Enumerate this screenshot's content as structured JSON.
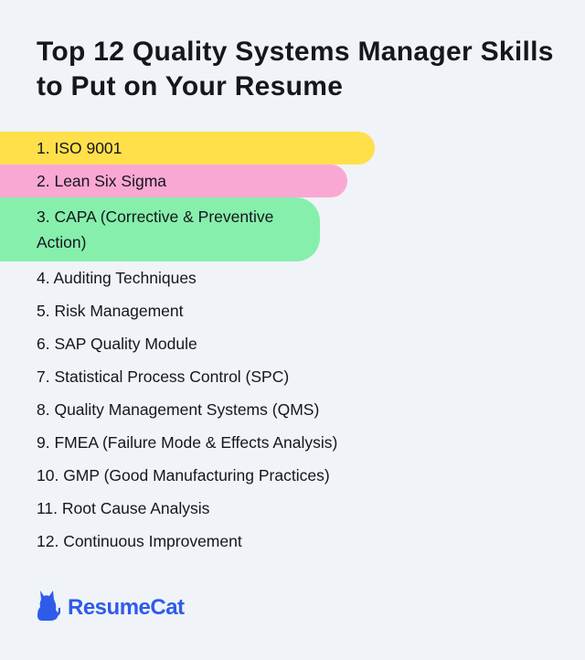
{
  "title": "Top 12 Quality Systems Manager Skills to Put on Your Resume",
  "skills": [
    {
      "label": "1. ISO 9001",
      "color": "#ffe04b"
    },
    {
      "label": "2. Lean Six Sigma",
      "color": "#f9a8d4"
    },
    {
      "label": "3. CAPA (Corrective & Preventive Action)",
      "color": "#86efac"
    },
    {
      "label": "4. Auditing Techniques"
    },
    {
      "label": "5. Risk Management"
    },
    {
      "label": "6. SAP Quality Module"
    },
    {
      "label": "7. Statistical Process Control (SPC)"
    },
    {
      "label": "8. Quality Management Systems (QMS)"
    },
    {
      "label": "9. FMEA (Failure Mode & Effects Analysis)"
    },
    {
      "label": "10. GMP (Good Manufacturing Practices)"
    },
    {
      "label": "11. Root Cause Analysis"
    },
    {
      "label": "12. Continuous Improvement"
    }
  ],
  "logo": {
    "icon": "cat-icon",
    "text": "ResumeCat",
    "color": "#2f5bea"
  }
}
